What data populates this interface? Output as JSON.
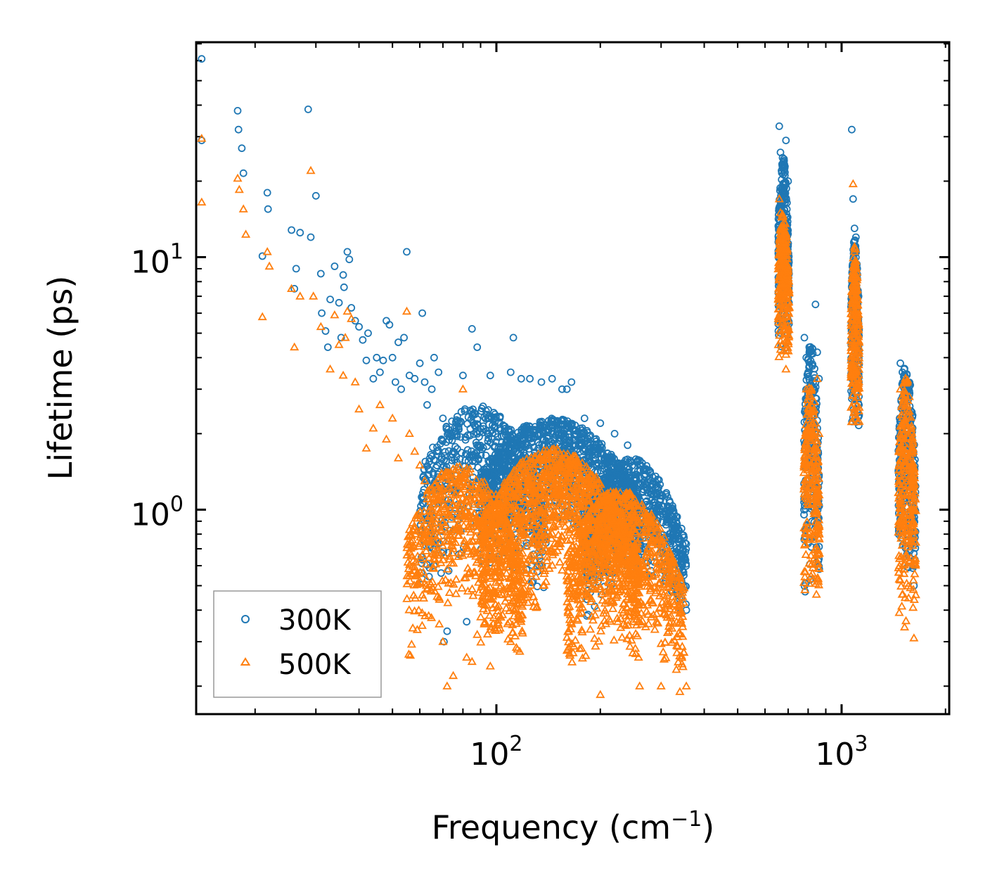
{
  "chart_data": {
    "type": "scatter",
    "title": "",
    "xlabel": "Frequency (cm",
    "xlabel_sup": "−1",
    "xlabel_tail": ")",
    "ylabel": "Lifetime (ps)",
    "xscale": "log",
    "yscale": "log",
    "xlim": [
      13.5,
      2050
    ],
    "ylim": [
      0.155,
      71
    ],
    "x_ticks": [
      {
        "base": "10",
        "exp": "2",
        "value": 100
      },
      {
        "base": "10",
        "exp": "3",
        "value": 1000
      }
    ],
    "y_ticks": [
      {
        "base": "10",
        "exp": "0",
        "value": 1
      },
      {
        "base": "10",
        "exp": "1",
        "value": 10
      }
    ],
    "legend": {
      "position": "lower-left",
      "entries": [
        "300K",
        "500K"
      ]
    },
    "colors": {
      "s300": "#1f77b4",
      "s500": "#ff7f0e",
      "axis": "#000000",
      "legend_border": "#999999"
    },
    "series": [
      {
        "name": "300K",
        "marker": "circle",
        "points": [
          [
            14,
            61
          ],
          [
            14,
            29
          ],
          [
            17.8,
            38
          ],
          [
            17.9,
            32
          ],
          [
            18.3,
            27
          ],
          [
            18.5,
            21.5
          ],
          [
            21,
            10.1
          ],
          [
            21.7,
            18
          ],
          [
            21.8,
            15.5
          ],
          [
            25.5,
            12.8
          ],
          [
            26,
            7.5
          ],
          [
            26.3,
            9
          ],
          [
            27,
            12.5
          ],
          [
            28.5,
            38.5
          ],
          [
            29,
            12
          ],
          [
            30,
            17.5
          ],
          [
            31,
            8.6
          ],
          [
            31.2,
            6
          ],
          [
            32,
            5.1
          ],
          [
            32.5,
            4.4
          ],
          [
            33,
            6.8
          ],
          [
            34,
            9.2
          ],
          [
            35,
            6.6
          ],
          [
            35.5,
            4.8
          ],
          [
            36,
            8.5
          ],
          [
            36.2,
            7.6
          ],
          [
            37,
            10.5
          ],
          [
            37.5,
            9.8
          ],
          [
            38,
            6.3
          ],
          [
            39,
            5.6
          ],
          [
            40,
            5.3
          ],
          [
            41,
            4.7
          ],
          [
            42,
            3.9
          ],
          [
            42.5,
            5
          ],
          [
            44,
            3.3
          ],
          [
            45,
            4
          ],
          [
            46,
            3.5
          ],
          [
            47,
            3.9
          ],
          [
            48,
            5.6
          ],
          [
            49,
            5.4
          ],
          [
            50,
            4
          ],
          [
            51,
            3.2
          ],
          [
            52,
            4.6
          ],
          [
            53,
            3
          ],
          [
            54,
            4.8
          ],
          [
            55,
            10.5
          ],
          [
            56,
            3.4
          ],
          [
            58,
            3.3
          ],
          [
            60,
            3.8
          ],
          [
            61,
            6
          ],
          [
            62,
            3.2
          ],
          [
            63,
            2.6
          ],
          [
            65,
            3
          ],
          [
            66,
            4
          ],
          [
            68,
            3.5
          ],
          [
            70,
            2.3
          ],
          [
            70.5,
            0.3
          ],
          [
            72,
            0.33
          ],
          [
            75,
            1.7
          ],
          [
            80,
            3.4
          ],
          [
            82,
            0.36
          ],
          [
            85,
            5.2
          ],
          [
            88,
            4.4
          ],
          [
            96,
            3.4
          ],
          [
            110,
            3.5
          ],
          [
            112,
            4.8
          ],
          [
            118,
            3.3
          ],
          [
            125,
            3.3
          ],
          [
            135,
            3.2
          ],
          [
            145,
            3.3
          ],
          [
            155,
            3
          ],
          [
            160,
            3
          ],
          [
            165,
            3.2
          ],
          [
            180,
            2.3
          ],
          [
            200,
            2.2
          ],
          [
            220,
            2
          ],
          [
            240,
            1.8
          ],
          [
            260,
            1.5
          ],
          [
            280,
            1.3
          ],
          [
            300,
            0.8
          ],
          [
            320,
            0.6
          ],
          [
            340,
            0.5
          ],
          [
            355,
            0.4
          ],
          [
            660,
            33
          ],
          [
            665,
            26
          ],
          [
            670,
            22
          ],
          [
            675,
            18
          ],
          [
            680,
            15
          ],
          [
            685,
            12
          ],
          [
            690,
            29
          ],
          [
            695,
            11
          ],
          [
            700,
            20
          ],
          [
            780,
            4.8
          ],
          [
            790,
            4
          ],
          [
            800,
            3.5
          ],
          [
            810,
            2.8
          ],
          [
            840,
            6.5
          ],
          [
            850,
            4.2
          ],
          [
            860,
            3.3
          ],
          [
            1070,
            32
          ],
          [
            1080,
            17
          ],
          [
            1090,
            13
          ],
          [
            1100,
            12
          ],
          [
            1110,
            9
          ],
          [
            1120,
            7
          ],
          [
            1480,
            3.8
          ],
          [
            1500,
            3.5
          ],
          [
            1520,
            3.2
          ],
          [
            1550,
            2.8
          ],
          [
            1580,
            2.3
          ],
          [
            1600,
            1.5
          ],
          [
            1620,
            0.5
          ]
        ],
        "clusters": [
          {
            "x": [
              60,
              140
            ],
            "y": [
              0.4,
              2.6
            ],
            "peak": 2.6,
            "n": 600
          },
          {
            "x": [
              90,
              260
            ],
            "y": [
              0.55,
              2.3
            ],
            "peak": 2.2,
            "n": 1100
          },
          {
            "x": [
              180,
              355
            ],
            "y": [
              0.35,
              1.6
            ],
            "peak": 1.6,
            "n": 700
          },
          {
            "x": [
              655,
              705
            ],
            "y": [
              3.9,
              25
            ],
            "peak": 25,
            "n": 260
          },
          {
            "x": [
              778,
              862
            ],
            "y": [
              0.45,
              4.6
            ],
            "peak": 4.6,
            "n": 240
          },
          {
            "x": [
              1065,
              1125
            ],
            "y": [
              1.9,
              12
            ],
            "peak": 12,
            "n": 220
          },
          {
            "x": [
              1460,
              1640
            ],
            "y": [
              0.5,
              3.8
            ],
            "peak": 3.8,
            "n": 280
          }
        ]
      },
      {
        "name": "500K",
        "marker": "triangle",
        "points": [
          [
            14,
            29.5
          ],
          [
            14,
            16.5
          ],
          [
            17.8,
            20.5
          ],
          [
            18,
            18.5
          ],
          [
            18.5,
            15.5
          ],
          [
            18.8,
            12.3
          ],
          [
            21,
            5.8
          ],
          [
            21.7,
            10.5
          ],
          [
            22,
            9.2
          ],
          [
            25.5,
            7.5
          ],
          [
            26,
            4.4
          ],
          [
            27,
            7
          ],
          [
            29,
            22
          ],
          [
            29.5,
            7
          ],
          [
            31,
            5.3
          ],
          [
            33,
            3.6
          ],
          [
            34,
            5.9
          ],
          [
            35,
            4.5
          ],
          [
            36,
            3.4
          ],
          [
            36.5,
            4.8
          ],
          [
            37,
            6.1
          ],
          [
            38,
            5.7
          ],
          [
            39,
            3.2
          ],
          [
            40,
            2.5
          ],
          [
            42,
            1.75
          ],
          [
            44,
            2.1
          ],
          [
            46,
            2.6
          ],
          [
            48,
            1.9
          ],
          [
            50,
            2.3
          ],
          [
            52,
            1.6
          ],
          [
            55,
            6.1
          ],
          [
            56,
            2
          ],
          [
            58,
            1.7
          ],
          [
            60,
            1.5
          ],
          [
            62,
            1.3
          ],
          [
            64,
            1.1
          ],
          [
            68,
            0.95
          ],
          [
            70,
            0.3
          ],
          [
            72,
            0.2
          ],
          [
            75,
            0.22
          ],
          [
            80,
            3
          ],
          [
            82,
            0.26
          ],
          [
            85,
            0.25
          ],
          [
            88,
            0.32
          ],
          [
            96,
            0.24
          ],
          [
            110,
            0.3
          ],
          [
            115,
            0.28
          ],
          [
            200,
            0.185
          ],
          [
            260,
            0.2
          ],
          [
            300,
            0.2
          ],
          [
            340,
            0.19
          ],
          [
            355,
            0.2
          ],
          [
            660,
            17
          ],
          [
            665,
            15
          ],
          [
            670,
            13
          ],
          [
            675,
            11
          ],
          [
            680,
            8
          ],
          [
            690,
            3.6
          ],
          [
            790,
            3
          ],
          [
            800,
            2.5
          ],
          [
            850,
            3.3
          ],
          [
            860,
            2
          ],
          [
            1080,
            19.5
          ],
          [
            1090,
            11
          ],
          [
            1100,
            9
          ],
          [
            1110,
            7
          ],
          [
            1480,
            3
          ],
          [
            1500,
            2.8
          ],
          [
            1550,
            2.5
          ],
          [
            1600,
            1
          ],
          [
            1620,
            0.31
          ]
        ],
        "clusters": [
          {
            "x": [
              55,
              120
            ],
            "y": [
              0.22,
              1.5
            ],
            "peak": 1.5,
            "n": 650
          },
          {
            "x": [
              90,
              260
            ],
            "y": [
              0.24,
              1.75
            ],
            "peak": 1.75,
            "n": 1300
          },
          {
            "x": [
              160,
              350
            ],
            "y": [
              0.2,
              1.2
            ],
            "peak": 1.2,
            "n": 800
          },
          {
            "x": [
              655,
              705
            ],
            "y": [
              3.7,
              15
            ],
            "peak": 15,
            "n": 260
          },
          {
            "x": [
              778,
              862
            ],
            "y": [
              0.42,
              3.2
            ],
            "peak": 3.2,
            "n": 240
          },
          {
            "x": [
              1065,
              1125
            ],
            "y": [
              1.8,
              11
            ],
            "peak": 11,
            "n": 220
          },
          {
            "x": [
              1460,
              1640
            ],
            "y": [
              0.31,
              3.4
            ],
            "peak": 3.4,
            "n": 280
          }
        ]
      }
    ]
  }
}
